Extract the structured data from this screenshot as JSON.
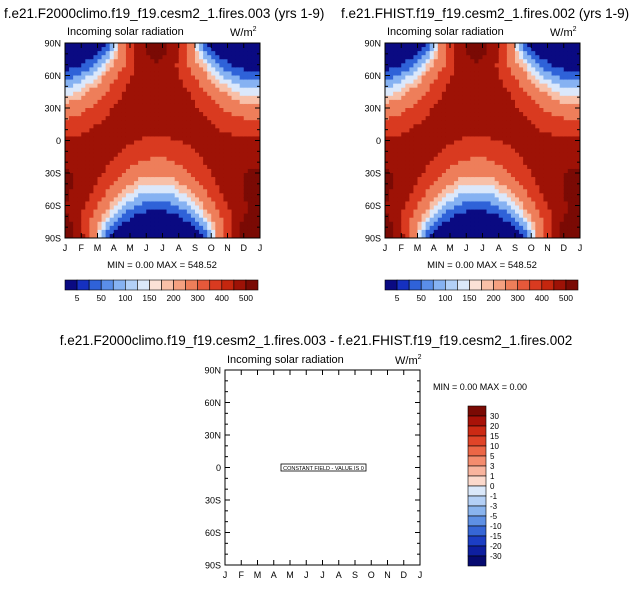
{
  "chart_data": [
    {
      "type": "heatmap",
      "title": "f.e21.F2000climo.f19_f19.cesm2_1.fires.003 (yrs 1-9)",
      "left_label": "Incoming solar radiation",
      "right_label": "W/m",
      "units_sup": "2",
      "x_ticks": [
        "J",
        "F",
        "M",
        "A",
        "M",
        "J",
        "J",
        "A",
        "S",
        "O",
        "N",
        "D",
        "J"
      ],
      "y_ticks": [
        "90N",
        "60N",
        "30N",
        "0",
        "30S",
        "60S",
        "90S"
      ],
      "ylim": [
        -90,
        90
      ],
      "stats": "MIN =   0.00 MAX = 548.52",
      "min": 0.0,
      "max": 548.52,
      "colorbar_levels": [
        "5",
        "50",
        "100",
        "150",
        "200",
        "300",
        "400",
        "500"
      ]
    },
    {
      "type": "heatmap",
      "title": "f.e21.FHIST.f19_f19.cesm2_1.fires.002 (yrs 1-9)",
      "left_label": "Incoming solar radiation",
      "right_label": "W/m",
      "units_sup": "2",
      "x_ticks": [
        "J",
        "F",
        "M",
        "A",
        "M",
        "J",
        "J",
        "A",
        "S",
        "O",
        "N",
        "D",
        "J"
      ],
      "y_ticks": [
        "90N",
        "60N",
        "30N",
        "0",
        "30S",
        "60S",
        "90S"
      ],
      "ylim": [
        -90,
        90
      ],
      "stats": "MIN =   0.00 MAX = 548.52",
      "min": 0.0,
      "max": 548.52,
      "colorbar_levels": [
        "5",
        "50",
        "100",
        "150",
        "200",
        "300",
        "400",
        "500"
      ]
    },
    {
      "type": "heatmap",
      "title": "f.e21.F2000climo.f19_f19.cesm2_1.fires.003 - f.e21.FHIST.f19_f19.cesm2_1.fires.002",
      "left_label": "Incoming solar radiation",
      "right_label": "W/m",
      "units_sup": "2",
      "x_ticks": [
        "J",
        "F",
        "M",
        "A",
        "M",
        "J",
        "J",
        "A",
        "S",
        "O",
        "N",
        "D",
        "J"
      ],
      "y_ticks": [
        "90N",
        "60N",
        "30N",
        "0",
        "30S",
        "60S",
        "90S"
      ],
      "ylim": [
        -90,
        90
      ],
      "stats": "MIN =   0.00 MAX =   0.00",
      "min": 0.0,
      "max": 0.0,
      "note": "CONSTANT FIELD - VALUE IS 0",
      "colorbar_levels": [
        "30",
        "20",
        "15",
        "10",
        "5",
        "3",
        "1",
        "0",
        "-1",
        "-3",
        "-5",
        "-10",
        "-15",
        "-20",
        "-30"
      ]
    }
  ],
  "colors": {
    "abs_palette": [
      "#0a0a82",
      "#1530c0",
      "#2f62d8",
      "#5a8ee8",
      "#86b2f2",
      "#b2d0f8",
      "#dbe8fb",
      "#fbe1d6",
      "#f8c0a8",
      "#f4a080",
      "#ee7e5a",
      "#e5583a",
      "#d93a20",
      "#c4260e",
      "#9e1206",
      "#7a0a04"
    ],
    "diff_palette": [
      "#7a0a04",
      "#a81208",
      "#cc2a14",
      "#e04428",
      "#ec6646",
      "#f48c6e",
      "#f8b49e",
      "#fbd9cc",
      "#dae8fa",
      "#b4d0f6",
      "#8ab4ee",
      "#5e90e4",
      "#3666d6",
      "#1c3ec4",
      "#0e1fa0",
      "#060a70"
    ]
  }
}
